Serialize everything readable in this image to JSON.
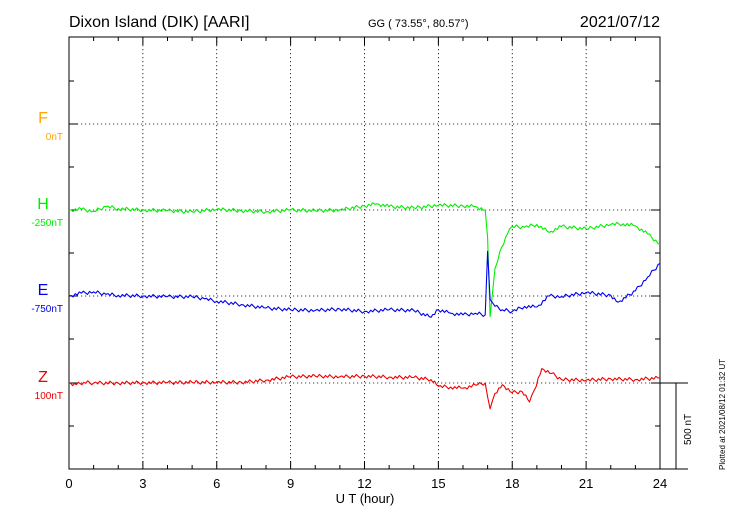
{
  "header": {
    "station": "Dixon Island (DIK)  [AARI]",
    "coords": "GG ( 73.55°,  80.57°)",
    "date": "2021/07/12"
  },
  "footer": {
    "plotted_note": "Plotted at 2021/08/12 01:32 UT"
  },
  "scale_bar": {
    "label": "500 nT",
    "value_nT": 500
  },
  "colors": {
    "F": "#ffa500",
    "H": "#00ee00",
    "E": "#0000ee",
    "Z": "#ee0000",
    "axis": "#000000"
  },
  "chart_data": {
    "type": "line",
    "xlabel": "U T (hour)",
    "xlim": [
      0,
      24
    ],
    "x_ticks": [
      "0",
      "3",
      "6",
      "9",
      "12",
      "15",
      "18",
      "21",
      "24"
    ],
    "nT_per_div": 250,
    "series": [
      {
        "name": "F",
        "baseline_label": "0nT",
        "baseline_nT": 0,
        "color": "#ffa500",
        "x": [],
        "y": []
      },
      {
        "name": "H",
        "baseline_label": "-250nT",
        "baseline_nT": -250,
        "color": "#00ee00",
        "x": [
          0,
          0.5,
          1,
          1.5,
          2,
          3,
          4,
          5,
          6,
          7,
          8,
          9,
          10,
          11,
          12,
          12.5,
          13,
          14,
          15,
          16,
          16.5,
          16.9,
          17.0,
          17.1,
          17.3,
          17.5,
          17.8,
          18,
          18.5,
          19,
          19.5,
          20,
          21,
          22,
          22.5,
          23,
          23.5,
          24
        ],
        "y": [
          -250,
          -248,
          -254,
          -240,
          -246,
          -250,
          -252,
          -255,
          -248,
          -252,
          -255,
          -250,
          -252,
          -250,
          -238,
          -232,
          -240,
          -244,
          -236,
          -238,
          -240,
          -250,
          -330,
          -560,
          -420,
          -370,
          -320,
          -298,
          -300,
          -292,
          -315,
          -298,
          -305,
          -292,
          -290,
          -296,
          -320,
          -350
        ]
      },
      {
        "name": "E",
        "baseline_label": "-750nT",
        "baseline_nT": -750,
        "color": "#0000ee",
        "x": [
          0,
          0.5,
          1,
          1.5,
          2,
          3,
          4,
          5,
          5.5,
          6,
          7,
          8,
          9,
          10,
          11,
          12,
          13,
          14,
          14.7,
          15,
          15.5,
          16,
          16.5,
          16.9,
          17.0,
          17.1,
          17.3,
          17.6,
          18,
          18.5,
          19,
          19.5,
          20,
          21,
          22,
          22.3,
          23,
          23.5,
          24
        ],
        "y": [
          -750,
          -742,
          -738,
          -745,
          -748,
          -750,
          -752,
          -752,
          -758,
          -765,
          -775,
          -785,
          -790,
          -792,
          -788,
          -795,
          -790,
          -792,
          -812,
          -790,
          -800,
          -805,
          -800,
          -805,
          -620,
          -760,
          -780,
          -790,
          -795,
          -780,
          -782,
          -750,
          -752,
          -740,
          -748,
          -768,
          -735,
          -695,
          -655
        ]
      },
      {
        "name": "Z",
        "baseline_label": "100nT",
        "baseline_nT": 100,
        "color": "#ee0000",
        "x": [
          0,
          0.3,
          0.6,
          1,
          2,
          3,
          4,
          5,
          6,
          7,
          8,
          9,
          10,
          11,
          12,
          13,
          14,
          14.7,
          15,
          15.5,
          16,
          16.6,
          16.9,
          17.1,
          17.3,
          17.6,
          18,
          18.4,
          18.7,
          18.9,
          19.2,
          19.6,
          20,
          21,
          22,
          23,
          24
        ],
        "y": [
          100,
          95,
          102,
          100,
          100,
          101,
          101,
          102,
          102,
          102,
          108,
          118,
          120,
          118,
          120,
          117,
          116,
          110,
          90,
          88,
          85,
          95,
          100,
          25,
          70,
          95,
          72,
          75,
          45,
          80,
          142,
          128,
          110,
          108,
          112,
          110,
          115
        ]
      }
    ]
  }
}
